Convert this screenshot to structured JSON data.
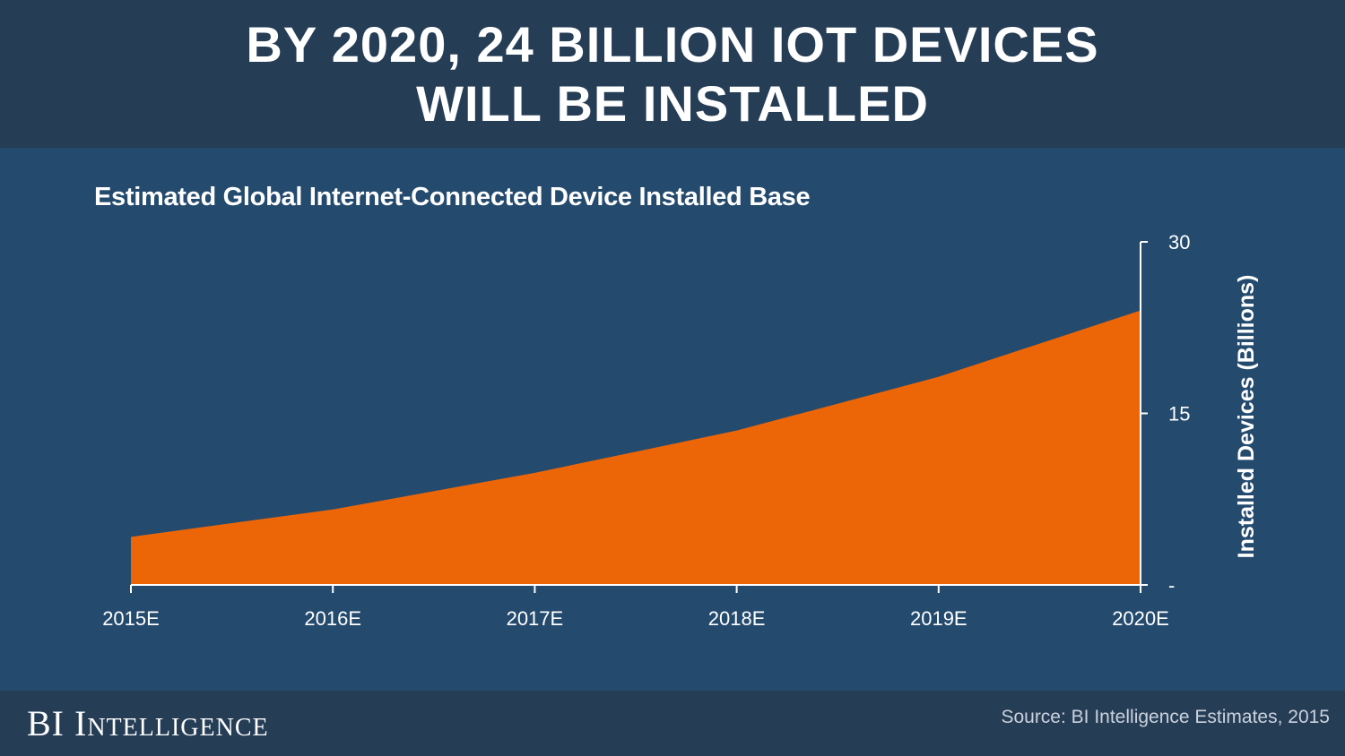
{
  "header": {
    "title_line1": "BY 2020, 24 BILLION IOT DEVICES",
    "title_line2": "WILL BE INSTALLED"
  },
  "footer": {
    "brand": "BI Intelligence",
    "source": "Source: BI Intelligence Estimates, 2015"
  },
  "colors": {
    "header_bg": "#263d56",
    "chart_bg": "#244a6e",
    "area_fill": "#ec6608",
    "text": "#ffffff"
  },
  "chart_data": {
    "type": "area",
    "title": "Estimated Global Internet-Connected Device Installed Base",
    "categories": [
      "2015E",
      "2016E",
      "2017E",
      "2018E",
      "2019E",
      "2020E"
    ],
    "values": [
      4.2,
      6.6,
      9.8,
      13.5,
      18.2,
      24.0
    ],
    "ylabel": "Installed Devices (Billions)",
    "ylim": [
      0,
      30
    ],
    "yticks": [
      0,
      15,
      30
    ],
    "ytick_labels": [
      "-",
      "15",
      "30"
    ],
    "y_axis_side": "right",
    "legend": "none",
    "grid": false
  }
}
